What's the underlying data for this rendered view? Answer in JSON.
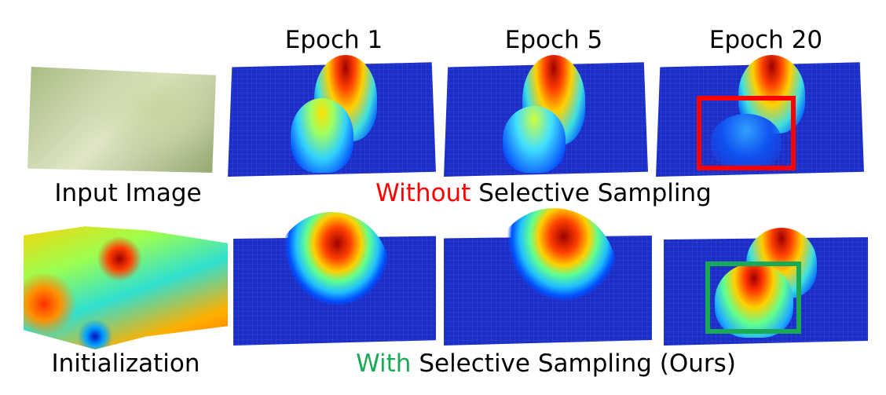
{
  "columns": [
    "Epoch 1",
    "Epoch 5",
    "Epoch 20"
  ],
  "rows": {
    "top": {
      "left_label": "Input Image",
      "caption_highlight": "Without",
      "caption_rest": " Selective Sampling",
      "highlight_color": "#ff0000"
    },
    "bottom": {
      "left_label": "Initialization",
      "caption_highlight": "With",
      "caption_rest": " Selective Sampling (Ours)",
      "highlight_color": "#1aaa55"
    }
  },
  "boxes": {
    "top_epoch20": "#ff0000",
    "bottom_epoch20": "#1aaa55"
  }
}
